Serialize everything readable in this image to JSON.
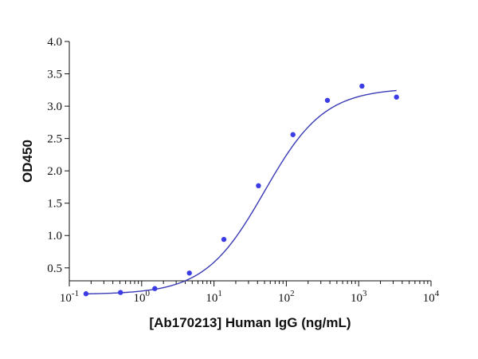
{
  "chart_data": {
    "type": "scatter",
    "title": "",
    "xlabel": "[Ab170213] Human IgG (ng/mL)",
    "ylabel": "OD450",
    "x_scale": "log",
    "xlim": [
      0.1,
      10000
    ],
    "ylim": [
      0.3,
      4.0
    ],
    "y_ticks": [
      "0.5",
      "1.0",
      "1.5",
      "2.0",
      "2.5",
      "3.0",
      "3.5",
      "4.0"
    ],
    "x_ticks": [
      {
        "base": "10",
        "exp": "-1"
      },
      {
        "base": "10",
        "exp": "0"
      },
      {
        "base": "10",
        "exp": "1"
      },
      {
        "base": "10",
        "exp": "2"
      },
      {
        "base": "10",
        "exp": "3"
      },
      {
        "base": "10",
        "exp": "4"
      }
    ],
    "grid": false,
    "legend": false,
    "series": [
      {
        "points": [
          {
            "x": 0.17,
            "y": 0.1
          },
          {
            "x": 0.51,
            "y": 0.12
          },
          {
            "x": 1.52,
            "y": 0.18
          },
          {
            "x": 4.57,
            "y": 0.42
          },
          {
            "x": 13.7,
            "y": 0.94
          },
          {
            "x": 41.2,
            "y": 1.77
          },
          {
            "x": 123.5,
            "y": 2.56
          },
          {
            "x": 370,
            "y": 3.09
          },
          {
            "x": 1111,
            "y": 3.31
          },
          {
            "x": 3333,
            "y": 3.14
          }
        ],
        "color": "#3c3ce6"
      }
    ],
    "fit_curve": {
      "model": "4PL",
      "bottom": 0.09,
      "top": 3.28,
      "ec50": 50,
      "hill": 1.05,
      "x_range": [
        0.17,
        3333
      ],
      "color": "#3a3ab4"
    }
  }
}
